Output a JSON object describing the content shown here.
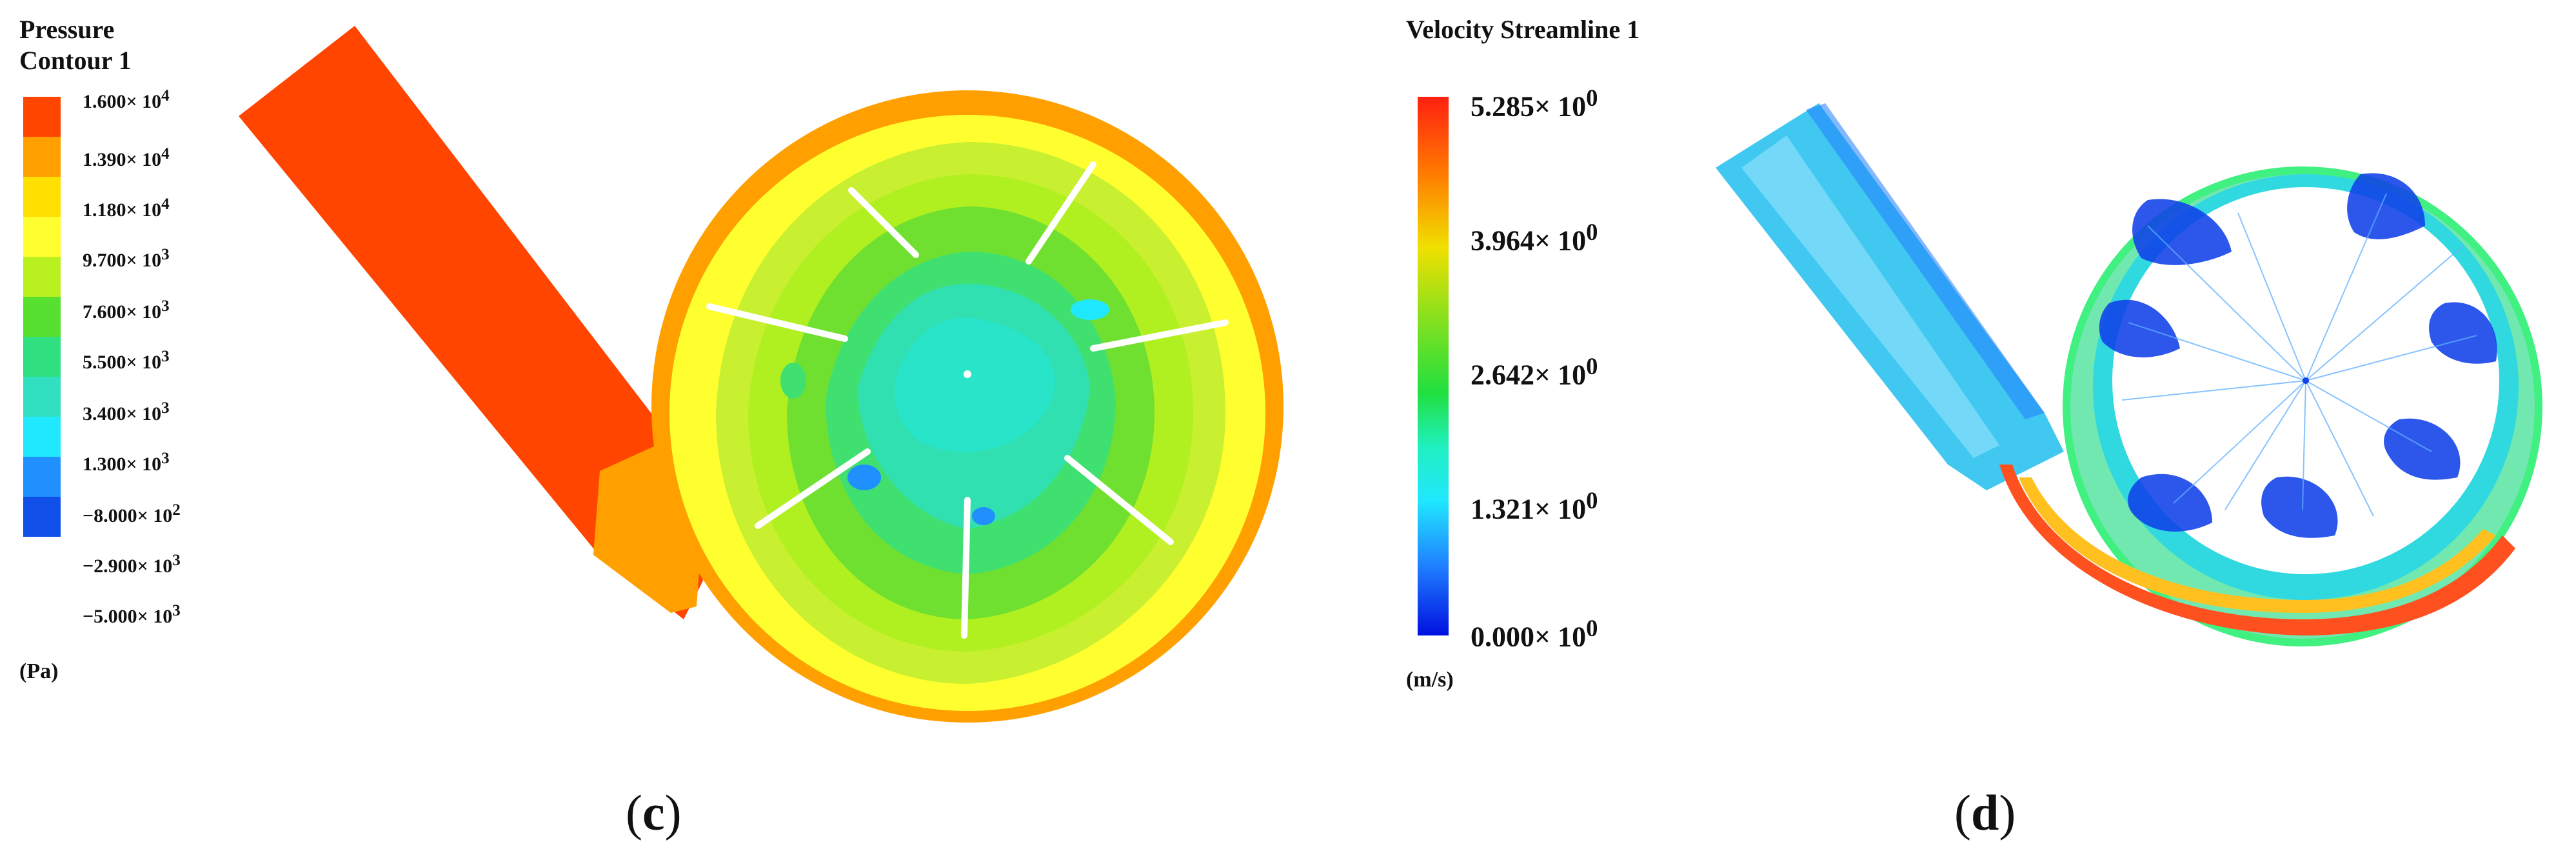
{
  "panel_c": {
    "title_line1": "Pressure",
    "title_line2": "Contour 1",
    "unit": "(Pa)",
    "caption_open": "(",
    "caption_letter": "c",
    "caption_close": ")",
    "legend": [
      {
        "label": "1.600× 10",
        "exp": "4"
      },
      {
        "label": "1.390× 10",
        "exp": "4"
      },
      {
        "label": "1.180× 10",
        "exp": "4"
      },
      {
        "label": "9.700× 10",
        "exp": "3"
      },
      {
        "label": "7.600× 10",
        "exp": "3"
      },
      {
        "label": "5.500× 10",
        "exp": "3"
      },
      {
        "label": "3.400× 10",
        "exp": "3"
      },
      {
        "label": "1.300× 10",
        "exp": "3"
      },
      {
        "label": "−8.000× 10",
        "exp": "2"
      },
      {
        "label": "−2.900× 10",
        "exp": "3"
      },
      {
        "label": "−5.000× 10",
        "exp": "3"
      }
    ],
    "legend_colors": [
      "#ff4500",
      "#ffa000",
      "#ffe000",
      "#ffff30",
      "#b8f020",
      "#58e030",
      "#30e080",
      "#30e0c0",
      "#20e8ff",
      "#2090ff",
      "#1050e8"
    ]
  },
  "panel_d": {
    "title": "Velocity Streamline 1",
    "unit": "(m/s)",
    "caption_open": "(",
    "caption_letter": "d",
    "caption_close": ")",
    "legend": [
      {
        "label": "5.285× 10",
        "exp": "0"
      },
      {
        "label": "3.964× 10",
        "exp": "0"
      },
      {
        "label": "2.642× 10",
        "exp": "0"
      },
      {
        "label": "1.321× 10",
        "exp": "0"
      },
      {
        "label": "0.000× 10",
        "exp": "0"
      }
    ],
    "gradient_colors": [
      "#ff2010",
      "#ff8000",
      "#f0e000",
      "#80e020",
      "#20e040",
      "#20f0c0",
      "#20e8ff",
      "#2080ff",
      "#0010e0"
    ]
  }
}
